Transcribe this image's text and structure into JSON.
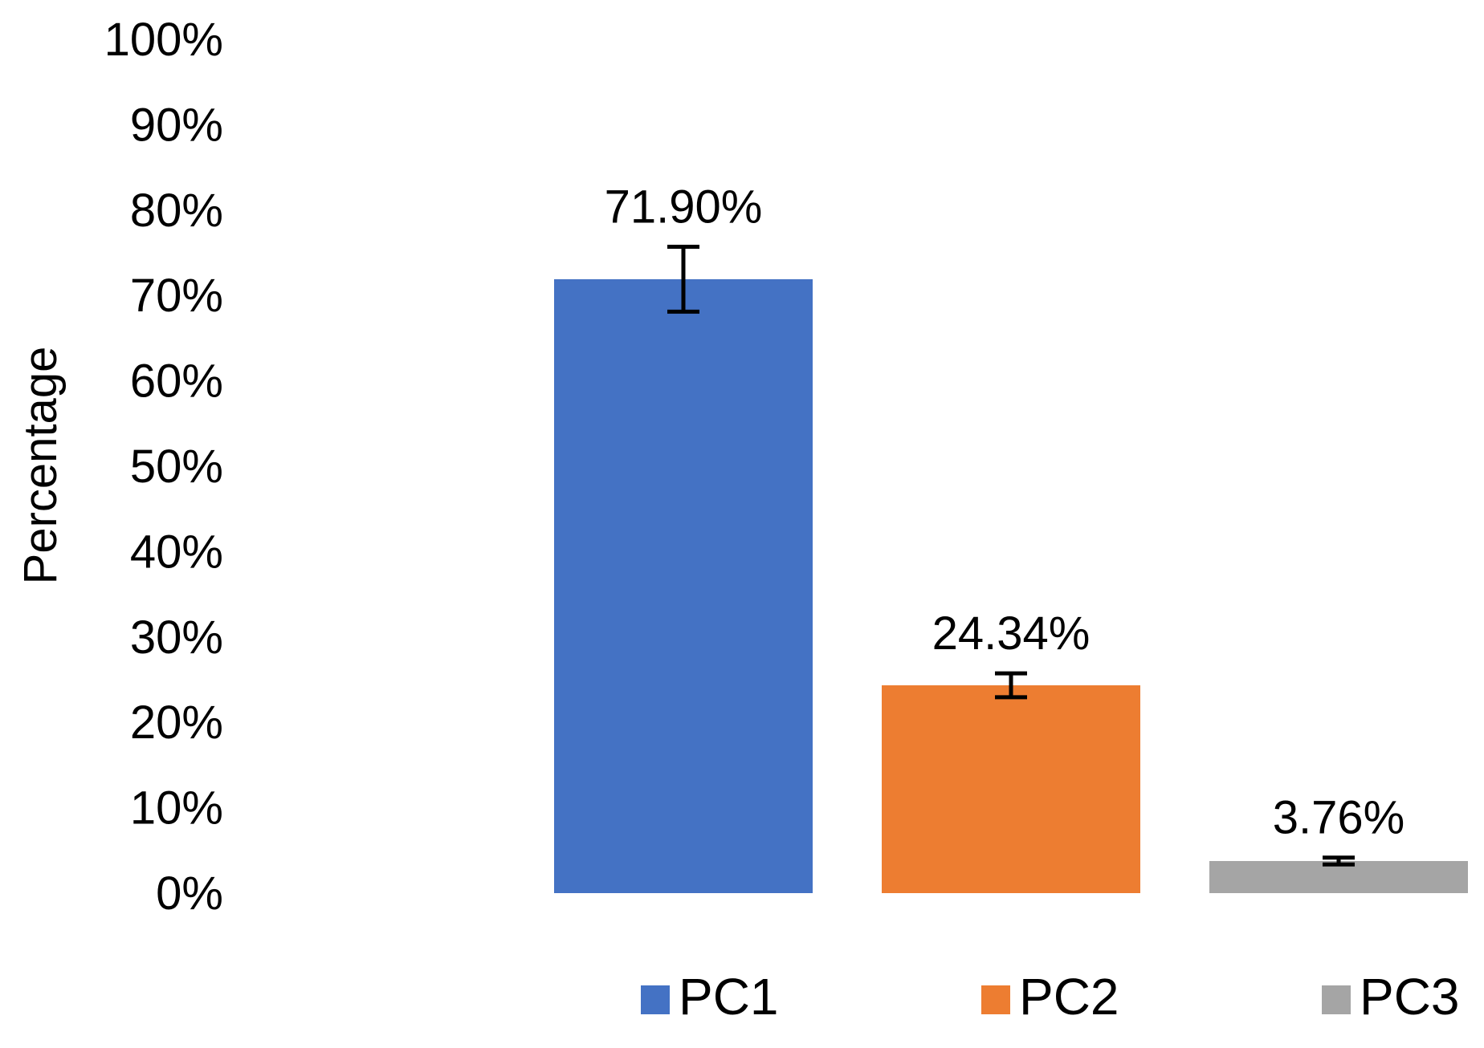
{
  "chart_data": {
    "type": "bar",
    "title": "",
    "xlabel": "",
    "ylabel": "Percentage",
    "ylim": [
      0,
      100
    ],
    "yticks": [
      0,
      10,
      20,
      30,
      40,
      50,
      60,
      70,
      80,
      90,
      100
    ],
    "ytick_labels": [
      "0%",
      "10%",
      "20%",
      "30%",
      "40%",
      "50%",
      "60%",
      "70%",
      "80%",
      "90%",
      "100%"
    ],
    "categories": [
      "PC1",
      "PC2",
      "PC3"
    ],
    "values": [
      71.9,
      24.34,
      3.76
    ],
    "data_labels": [
      "71.90%",
      "24.34%",
      "3.76%"
    ],
    "error": [
      3.8,
      1.4,
      0.4
    ],
    "colors": [
      "#4472C4",
      "#ED7D31",
      "#A5A5A5"
    ],
    "legend": {
      "placement": "bottom",
      "entries": [
        "PC1",
        "PC2",
        "PC3"
      ]
    },
    "grid": false
  }
}
